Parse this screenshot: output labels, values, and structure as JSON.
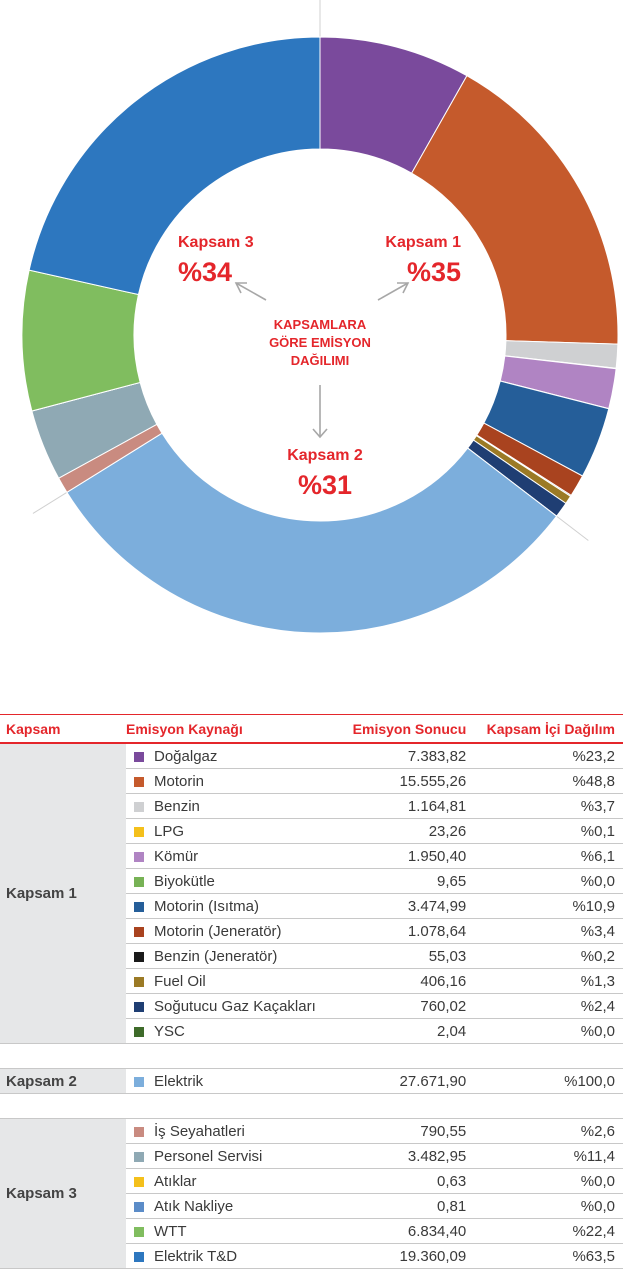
{
  "chart_data": {
    "type": "pie",
    "variant": "donut",
    "center_title": [
      "KAPSAMLARA",
      "GÖRE EMİSYON",
      "DAĞILIMI"
    ],
    "scope_labels": [
      {
        "name": "Kapsam 1",
        "value": "%35"
      },
      {
        "name": "Kapsam 2",
        "value": "%31"
      },
      {
        "name": "Kapsam 3",
        "value": "%34"
      }
    ],
    "slices": [
      {
        "name": "Doğalgaz",
        "value": 7383.82,
        "color": "#7a4a9c"
      },
      {
        "name": "Motorin",
        "value": 15555.26,
        "color": "#c55a2c"
      },
      {
        "name": "Benzin",
        "value": 1164.81,
        "color": "#cfd0d2"
      },
      {
        "name": "LPG",
        "value": 23.26,
        "color": "#f4c01b"
      },
      {
        "name": "Kömür",
        "value": 1950.4,
        "color": "#b084c3"
      },
      {
        "name": "Biyokütle",
        "value": 9.65,
        "color": "#77b255"
      },
      {
        "name": "Motorin (Isıtma)",
        "value": 3474.99,
        "color": "#255e99"
      },
      {
        "name": "Motorin (Jeneratör)",
        "value": 1078.64,
        "color": "#a9431f"
      },
      {
        "name": "Benzin (Jeneratör)",
        "value": 55.03,
        "color": "#1a1a1a"
      },
      {
        "name": "Fuel Oil",
        "value": 406.16,
        "color": "#9b7a25"
      },
      {
        "name": "Soğutucu Gaz Kaçakları",
        "value": 760.02,
        "color": "#1f3e73"
      },
      {
        "name": "YSC",
        "value": 2.04,
        "color": "#3e6b2a"
      },
      {
        "name": "Elektrik",
        "value": 27671.9,
        "color": "#7caedc"
      },
      {
        "name": "İş Seyahatleri",
        "value": 790.55,
        "color": "#c98b80"
      },
      {
        "name": "Personel Servisi",
        "value": 3482.95,
        "color": "#8fa9b4"
      },
      {
        "name": "Atıklar",
        "value": 0.63,
        "color": "#f4c01b"
      },
      {
        "name": "Atık Nakliye",
        "value": 0.81,
        "color": "#5b8cc8"
      },
      {
        "name": "WTT",
        "value": 6834.4,
        "color": "#80bd5f"
      },
      {
        "name": "Elektrik T&D",
        "value": 19360.09,
        "color": "#2d77bf"
      }
    ]
  },
  "table": {
    "headers": [
      "Kapsam",
      "Emisyon Kaynağı",
      "Emisyon Sonucu",
      "Kapsam İçi Dağılım"
    ],
    "groups": [
      {
        "scope": "Kapsam 1",
        "rows": [
          {
            "source": "Doğalgaz",
            "result": "7.383,82",
            "share": "%23,2",
            "color": "#7a4a9c"
          },
          {
            "source": "Motorin",
            "result": "15.555,26",
            "share": "%48,8",
            "color": "#c55a2c"
          },
          {
            "source": "Benzin",
            "result": "1.164,81",
            "share": "%3,7",
            "color": "#cfd0d2"
          },
          {
            "source": "LPG",
            "result": "23,26",
            "share": "%0,1",
            "color": "#f4c01b"
          },
          {
            "source": "Kömür",
            "result": "1.950,40",
            "share": "%6,1",
            "color": "#b084c3"
          },
          {
            "source": "Biyokütle",
            "result": "9,65",
            "share": "%0,0",
            "color": "#77b255"
          },
          {
            "source": "Motorin (Isıtma)",
            "result": "3.474,99",
            "share": "%10,9",
            "color": "#255e99"
          },
          {
            "source": "Motorin (Jeneratör)",
            "result": "1.078,64",
            "share": "%3,4",
            "color": "#a9431f"
          },
          {
            "source": "Benzin (Jeneratör)",
            "result": "55,03",
            "share": "%0,2",
            "color": "#1a1a1a"
          },
          {
            "source": "Fuel Oil",
            "result": "406,16",
            "share": "%1,3",
            "color": "#9b7a25"
          },
          {
            "source": "Soğutucu Gaz Kaçakları",
            "result": "760,02",
            "share": "%2,4",
            "color": "#1f3e73"
          },
          {
            "source": "YSC",
            "result": "2,04",
            "share": "%0,0",
            "color": "#3e6b2a"
          }
        ]
      },
      {
        "scope": "Kapsam 2",
        "rows": [
          {
            "source": "Elektrik",
            "result": "27.671,90",
            "share": "%100,0",
            "color": "#7caedc"
          }
        ]
      },
      {
        "scope": "Kapsam 3",
        "rows": [
          {
            "source": "İş Seyahatleri",
            "result": "790,55",
            "share": "%2,6",
            "color": "#c98b80"
          },
          {
            "source": "Personel Servisi",
            "result": "3.482,95",
            "share": "%11,4",
            "color": "#8fa9b4"
          },
          {
            "source": "Atıklar",
            "result": "0,63",
            "share": "%0,0",
            "color": "#f4c01b"
          },
          {
            "source": "Atık Nakliye",
            "result": "0,81",
            "share": "%0,0",
            "color": "#5b8cc8"
          },
          {
            "source": "WTT",
            "result": "6.834,40",
            "share": "%22,4",
            "color": "#80bd5f"
          },
          {
            "source": "Elektrik T&D",
            "result": "19.360,09",
            "share": "%63,5",
            "color": "#2d77bf"
          }
        ]
      }
    ]
  }
}
